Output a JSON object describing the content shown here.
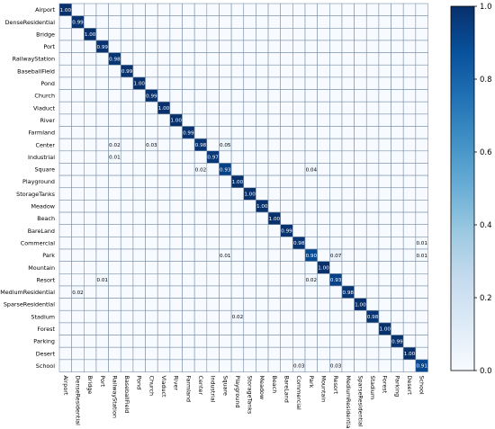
{
  "chart_data": {
    "type": "heatmap",
    "classes": [
      "Airport",
      "DenseResidential",
      "Bridge",
      "Port",
      "RailwayStation",
      "BaseballField",
      "Pond",
      "Church",
      "Viaduct",
      "River",
      "Farmland",
      "Center",
      "Industrial",
      "Square",
      "Playground",
      "StorageTanks",
      "Meadow",
      "Beach",
      "BareLand",
      "Commercial",
      "Park",
      "Mountain",
      "Resort",
      "MediumResidential",
      "SparseResidential",
      "Stadium",
      "Forest",
      "Parking",
      "Desert",
      "School"
    ],
    "diagonal": [
      1.0,
      0.99,
      1.0,
      0.99,
      0.98,
      0.99,
      1.0,
      0.99,
      1.0,
      1.0,
      0.99,
      0.98,
      0.97,
      0.93,
      1.0,
      1.0,
      1.0,
      1.0,
      0.99,
      0.98,
      0.9,
      1.0,
      0.93,
      0.98,
      1.0,
      0.98,
      1.0,
      0.99,
      1.0,
      0.91
    ],
    "off_diagonal": [
      {
        "row": 11,
        "col": 4,
        "value": 0.02
      },
      {
        "row": 11,
        "col": 7,
        "value": 0.03
      },
      {
        "row": 11,
        "col": 13,
        "value": 0.05
      },
      {
        "row": 12,
        "col": 4,
        "value": 0.01
      },
      {
        "row": 13,
        "col": 11,
        "value": 0.02
      },
      {
        "row": 13,
        "col": 20,
        "value": 0.04
      },
      {
        "row": 19,
        "col": 29,
        "value": 0.01
      },
      {
        "row": 20,
        "col": 13,
        "value": 0.01
      },
      {
        "row": 20,
        "col": 22,
        "value": 0.07
      },
      {
        "row": 20,
        "col": 29,
        "value": 0.01
      },
      {
        "row": 22,
        "col": 3,
        "value": 0.01
      },
      {
        "row": 22,
        "col": 20,
        "value": 0.02
      },
      {
        "row": 23,
        "col": 1,
        "value": 0.02
      },
      {
        "row": 25,
        "col": 14,
        "value": 0.02
      },
      {
        "row": 29,
        "col": 19,
        "value": 0.03
      },
      {
        "row": 29,
        "col": 22,
        "value": 0.03
      }
    ],
    "value_format": "2-decimal",
    "colormap": "Blues",
    "colors": {
      "low": "#f7fbff",
      "high": "#08306b",
      "grid": "#7a8fa8",
      "text_dark": "#000000",
      "text_light": "#ffffff"
    },
    "colorbar": {
      "min": 0.0,
      "max": 1.0,
      "ticks": [
        "0.0",
        "0.2",
        "0.4",
        "0.6",
        "0.8",
        "1.0"
      ]
    },
    "grid": true,
    "title": "",
    "xlabel": "",
    "ylabel": ""
  }
}
